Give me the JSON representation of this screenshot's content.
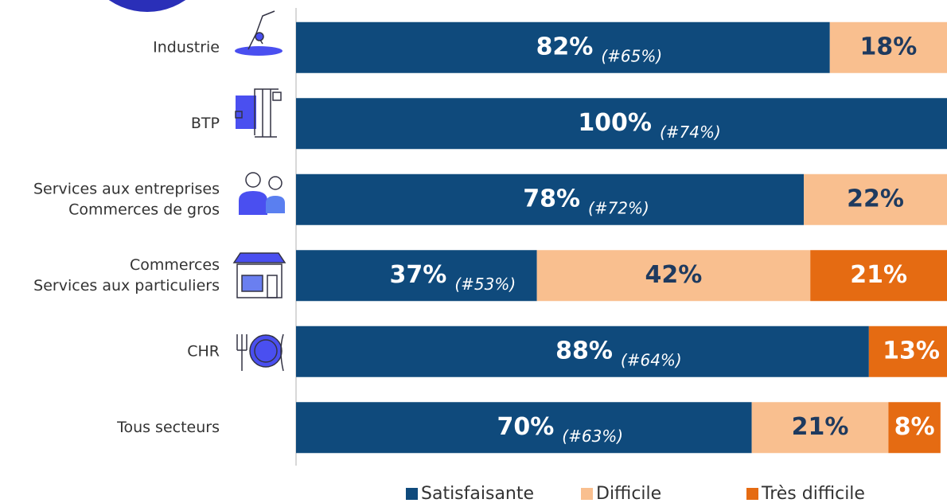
{
  "chart_data": {
    "type": "stacked-bar-horizontal",
    "categories": [
      [
        "Industrie"
      ],
      [
        "BTP"
      ],
      [
        "Services aux entreprises",
        "Commerces de gros"
      ],
      [
        "Commerces",
        "Services aux particuliers"
      ],
      [
        "CHR"
      ],
      [
        "Tous secteurs"
      ]
    ],
    "annotations": [
      "(#65%)",
      "(#74%)",
      "(#72%)",
      "(#53%)",
      "(#64%)",
      "(#63%)"
    ],
    "series": [
      {
        "name": "Satisfaisante",
        "color": "#0f4a7c",
        "label_color": "#ffffff",
        "values": [
          82,
          100,
          78,
          37,
          88,
          70
        ],
        "value_labels": [
          "82%",
          "100%",
          "78%",
          "37%",
          "88%",
          "70%"
        ]
      },
      {
        "name": "Difficile",
        "color": "#f9bf8f",
        "label_color": "#1e3a5f",
        "values": [
          18,
          null,
          22,
          42,
          null,
          21
        ],
        "value_labels": [
          "18%",
          null,
          "22%",
          "42%",
          null,
          "21%"
        ]
      },
      {
        "name": "Très difficile",
        "color": "#e56b12",
        "label_color": "#ffffff",
        "values": [
          null,
          null,
          null,
          21,
          13,
          8
        ],
        "value_labels": [
          null,
          null,
          null,
          "21%",
          "13%",
          "8%"
        ]
      }
    ],
    "xlim": [
      0,
      100
    ],
    "legend": "bottom"
  }
}
